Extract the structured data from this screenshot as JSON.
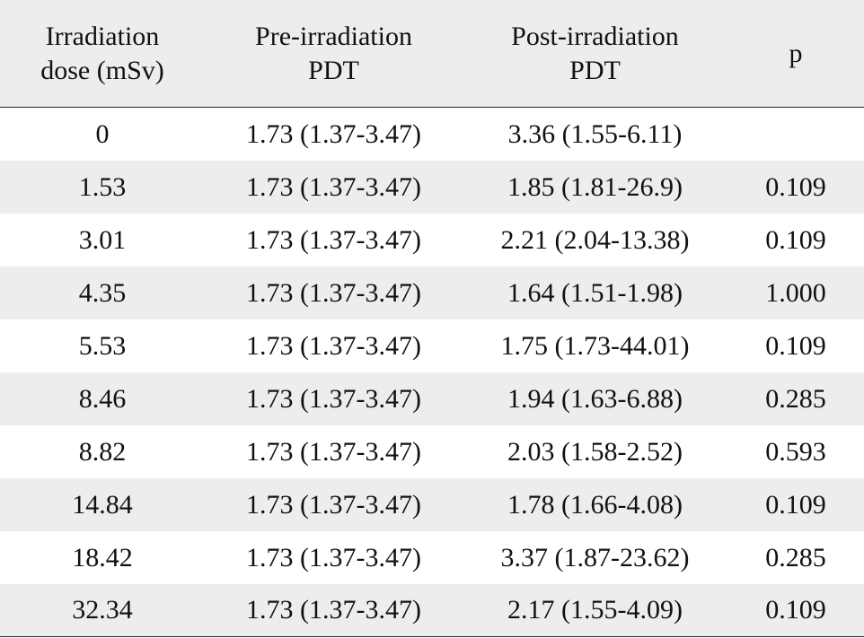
{
  "table": {
    "header": [
      [
        "Irradiation",
        "dose (mSv)"
      ],
      [
        "Pre-irradiation",
        "PDT"
      ],
      [
        "Post-irradiation",
        "PDT"
      ],
      [
        "p"
      ]
    ],
    "rows": [
      [
        "0",
        "1.73 (1.37-3.47)",
        "3.36 (1.55-6.11)",
        null
      ],
      [
        "1.53",
        "1.73 (1.37-3.47)",
        "1.85 (1.81-26.9)",
        "0.109"
      ],
      [
        "3.01",
        "1.73 (1.37-3.47)",
        "2.21 (2.04-13.38)",
        "0.109"
      ],
      [
        "4.35",
        "1.73 (1.37-3.47)",
        "1.64 (1.51-1.98)",
        "1.000"
      ],
      [
        "5.53",
        "1.73 (1.37-3.47)",
        "1.75 (1.73-44.01)",
        "0.109"
      ],
      [
        "8.46",
        "1.73 (1.37-3.47)",
        "1.94 (1.63-6.88)",
        "0.285"
      ],
      [
        "8.82",
        "1.73 (1.37-3.47)",
        "2.03 (1.58-2.52)",
        "0.593"
      ],
      [
        "14.84",
        "1.73 (1.37-3.47)",
        "1.78 (1.66-4.08)",
        "0.109"
      ],
      [
        "18.42",
        "1.73 (1.37-3.47)",
        "3.37 (1.87-23.62)",
        "0.285"
      ],
      [
        "32.34",
        "1.73 (1.37-3.47)",
        "2.17 (1.55-4.09)",
        "0.109"
      ]
    ]
  }
}
